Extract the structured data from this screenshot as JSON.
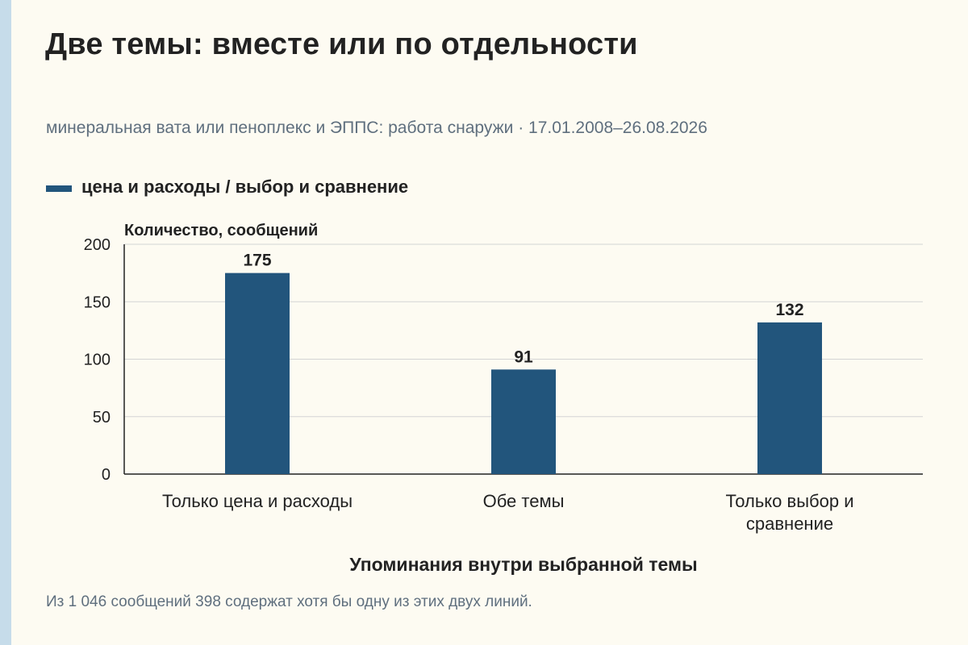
{
  "header": {
    "title": "Две темы: вместе или по отдельности",
    "subtitle": "минеральная вата или пеноплекс и ЭППС: работа снаружи · 17.01.2008–26.08.2026"
  },
  "colors": {
    "bar": "#22557c",
    "accent_strip": "#c6dcea",
    "background": "#fdfbf2"
  },
  "chart_data": {
    "type": "bar",
    "categories": [
      "Только цена и расходы",
      "Обе темы",
      "Только выбор и сравнение"
    ],
    "series": [
      {
        "name": "цена и расходы / выбор и сравнение",
        "values": [
          175,
          91,
          132
        ]
      }
    ],
    "ylabel": "Количество, сообщений",
    "xlabel": "Упоминания внутри выбранной темы",
    "ylim": [
      0,
      200
    ],
    "yticks": [
      0,
      50,
      100,
      150,
      200
    ],
    "grid": true,
    "legend": "top-left",
    "data_labels": true
  },
  "footnote": "Из 1 046 сообщений 398 содержат хотя бы одну из этих двух линий."
}
